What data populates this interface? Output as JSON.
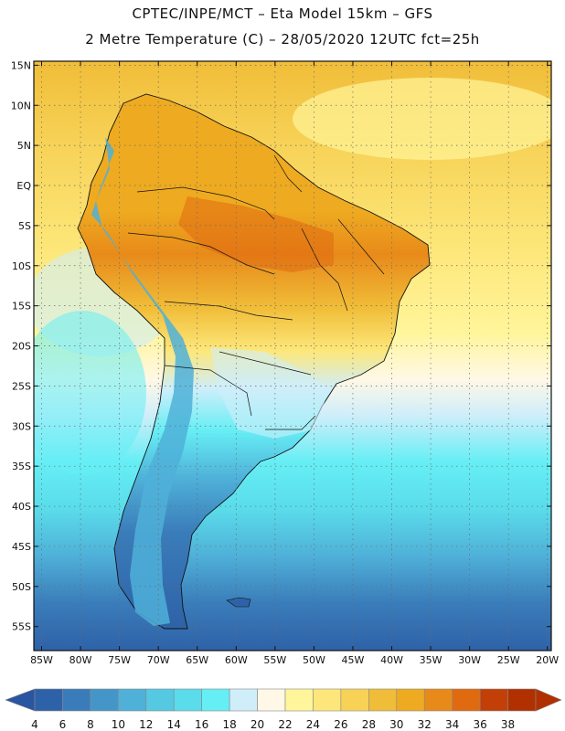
{
  "header": {
    "line1": "CPTEC/INPE/MCT  –   Eta Model 15km  –  GFS",
    "line2": "2 Metre Temperature (C) – 28/05/2020 12UTC fct=25h"
  },
  "map": {
    "lat_labels": [
      "15N",
      "10N",
      "5N",
      "EQ",
      "5S",
      "10S",
      "15S",
      "20S",
      "25S",
      "30S",
      "35S",
      "40S",
      "45S",
      "50S",
      "55S"
    ],
    "lon_labels": [
      "85W",
      "80W",
      "75W",
      "70W",
      "65W",
      "60W",
      "55W",
      "50W",
      "45W",
      "40W",
      "35W",
      "30W",
      "25W",
      "20W"
    ],
    "lat_range": [
      15.5,
      -58
    ],
    "lon_range": [
      -86,
      -19.5
    ]
  },
  "colorbar": {
    "labels": [
      "4",
      "6",
      "8",
      "10",
      "12",
      "14",
      "16",
      "18",
      "20",
      "22",
      "24",
      "26",
      "28",
      "30",
      "32",
      "34",
      "36",
      "38"
    ],
    "colors": [
      "#2e62a8",
      "#3a7cba",
      "#4596c8",
      "#4fb0d8",
      "#55c8e2",
      "#5adcea",
      "#66eef5",
      "#cfeefa",
      "#fff8e6",
      "#fff59a",
      "#fde77a",
      "#f7d257",
      "#f0bd38",
      "#eeaa20",
      "#e88a1a",
      "#e06a10",
      "#c24008",
      "#b03000"
    ],
    "low_color": "#2a55a0",
    "high_color": "#b03000"
  }
}
